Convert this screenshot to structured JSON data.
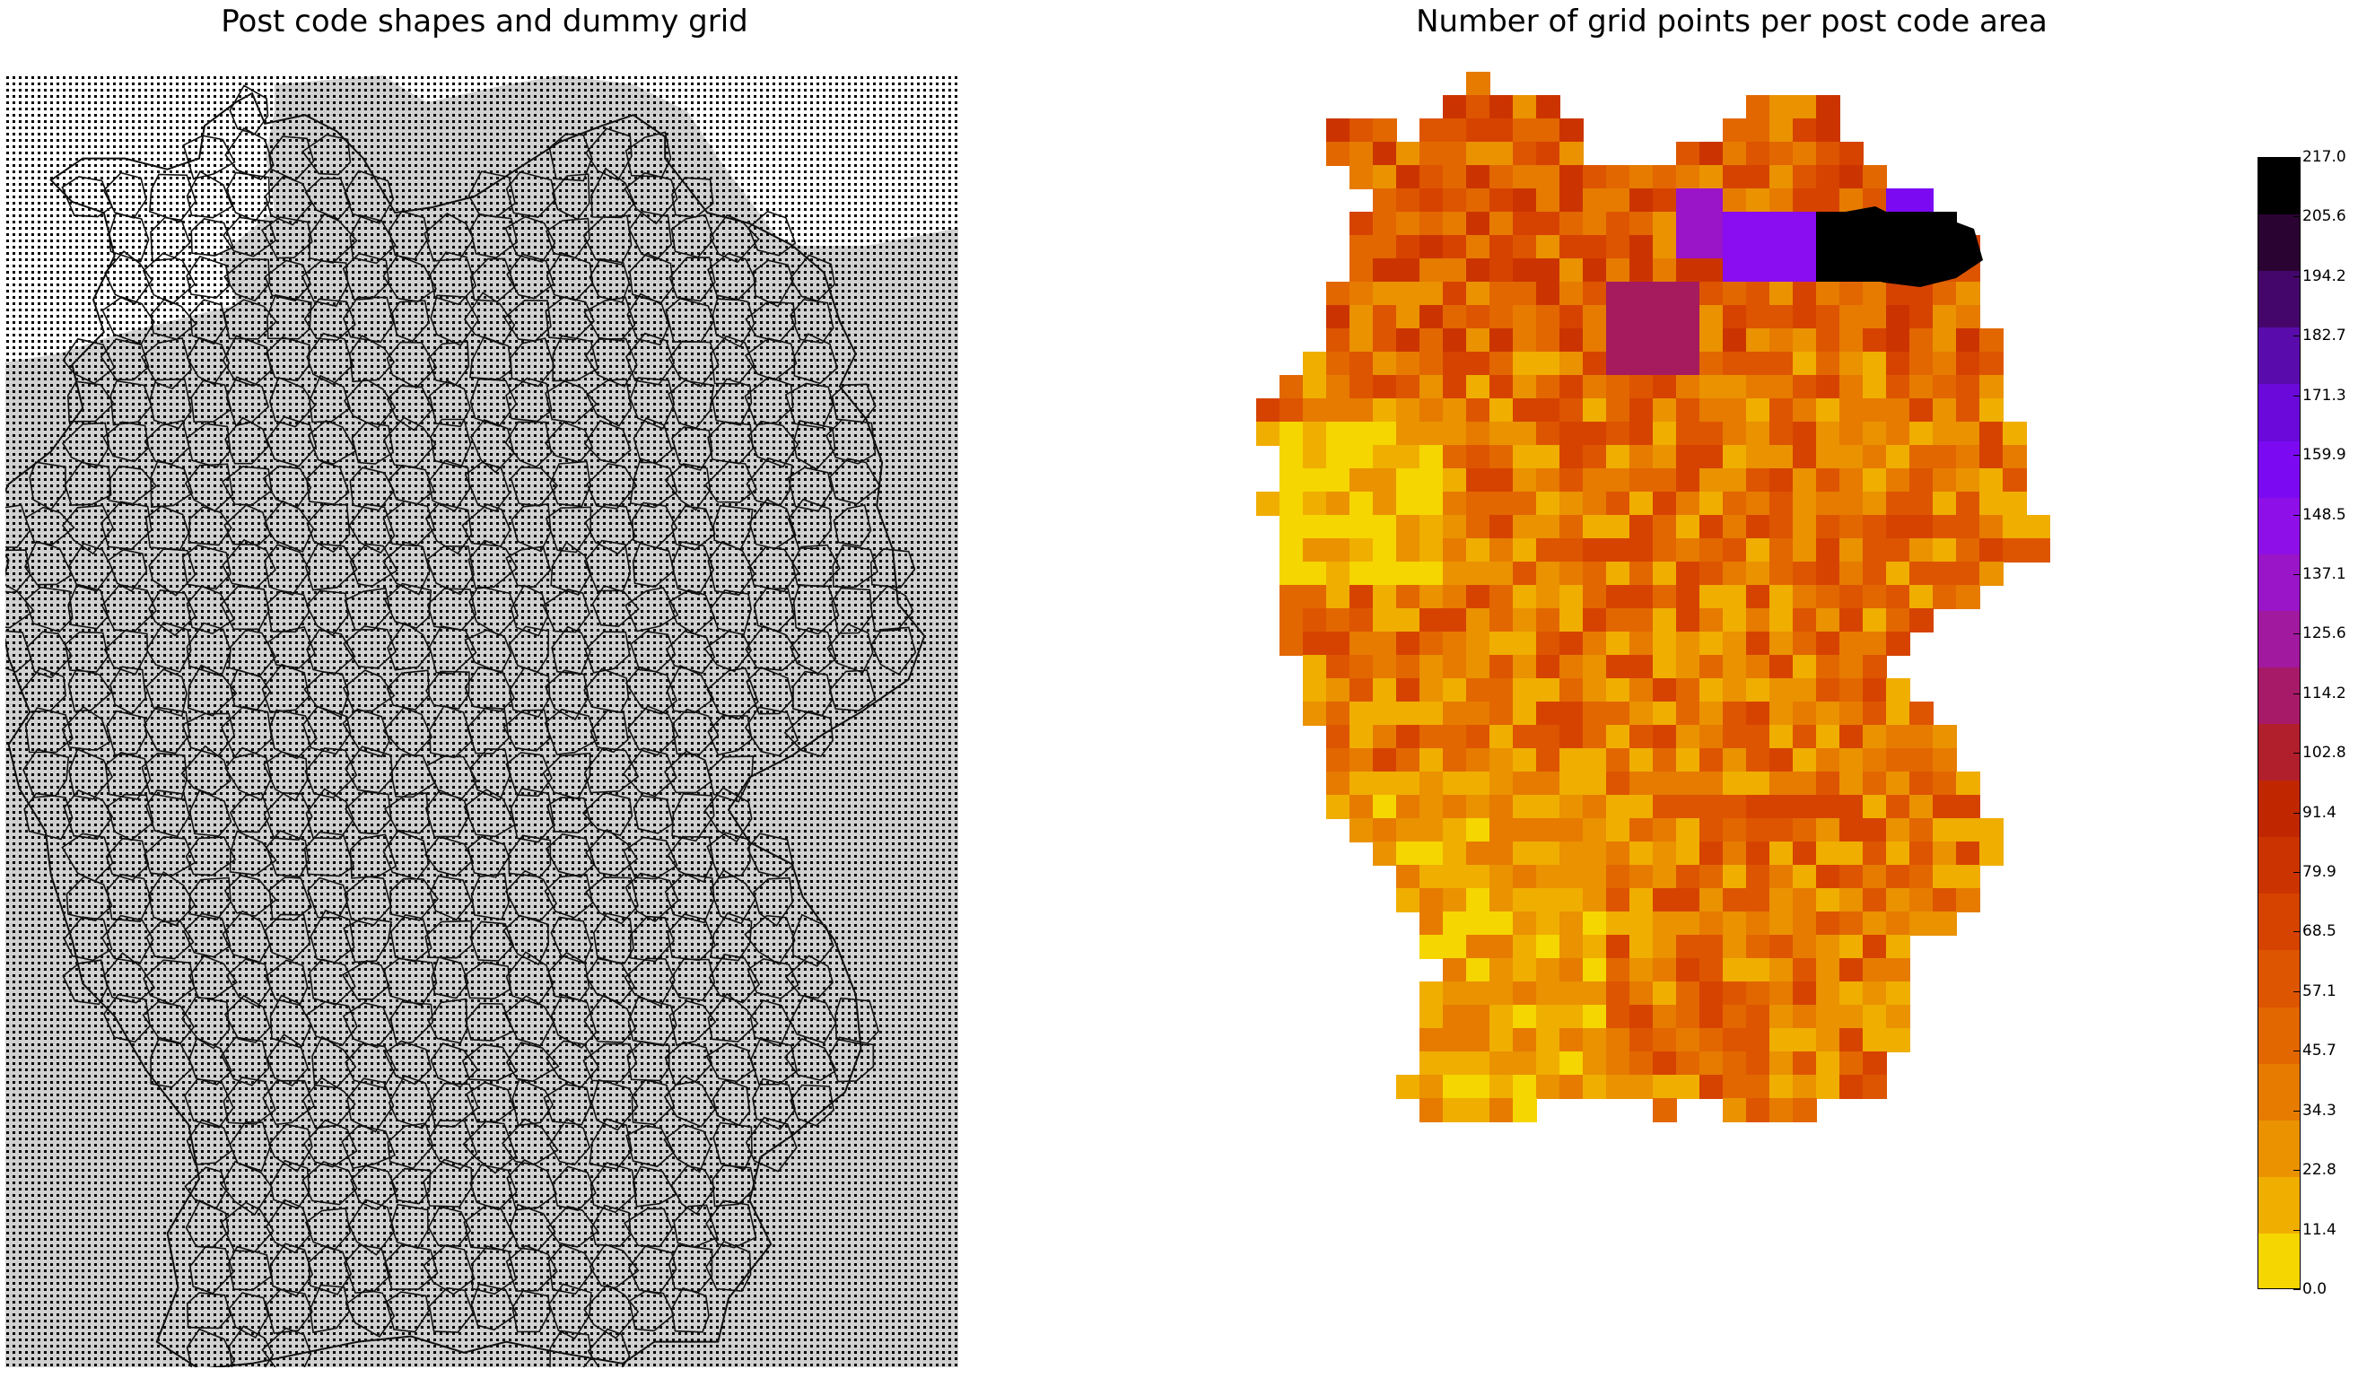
{
  "left_panel": {
    "title": "Post code shapes and dummy grid"
  },
  "right_panel": {
    "title": "Number of grid points per post code area"
  },
  "colorbar": {
    "colormap": "gnuplot (reversed)",
    "tick_labels": [
      "217.0",
      "205.6",
      "194.2",
      "182.7",
      "171.3",
      "159.9",
      "148.5",
      "137.1",
      "125.6",
      "114.2",
      "102.8",
      "91.4",
      "79.9",
      "68.5",
      "57.1",
      "45.7",
      "34.3",
      "22.8",
      "11.4",
      "0.0"
    ],
    "band_colors": [
      "#000000",
      "#2b0333",
      "#45066b",
      "#5a0bab",
      "#6a09d9",
      "#7b09f2",
      "#8e0fe8",
      "#9a14c8",
      "#a1199f",
      "#a61a68",
      "#b11f2c",
      "#c02700",
      "#cb3400",
      "#d64300",
      "#dd5500",
      "#e26700",
      "#e67b00",
      "#ea9200",
      "#f0ae00",
      "#f5d600"
    ]
  },
  "chart_data": {
    "type": "heatmap",
    "title": "Number of grid points per post code area",
    "value_range": [
      0.0,
      217.0
    ],
    "legend": "colorbar right",
    "highlights": [
      {
        "region": "north-east",
        "value_range": [
          205.6,
          217.0
        ],
        "color": "#000000"
      },
      {
        "region": "north-east",
        "value_range": [
          148.5,
          171.3
        ],
        "color": "#8a0cf0"
      },
      {
        "region": "north-east",
        "value_range": [
          114.2,
          137.1
        ],
        "color": "#9a1ab0"
      },
      {
        "region": "north-central",
        "value_range": [
          102.8,
          114.2
        ],
        "color": "#a61a5e"
      },
      {
        "region": "west (Rhineland)",
        "value_range": [
          0.0,
          22.8
        ],
        "color": "#f5d600"
      },
      {
        "region": "south-west",
        "value_range": [
          0.0,
          22.8
        ],
        "color": "#f5d600"
      }
    ]
  }
}
